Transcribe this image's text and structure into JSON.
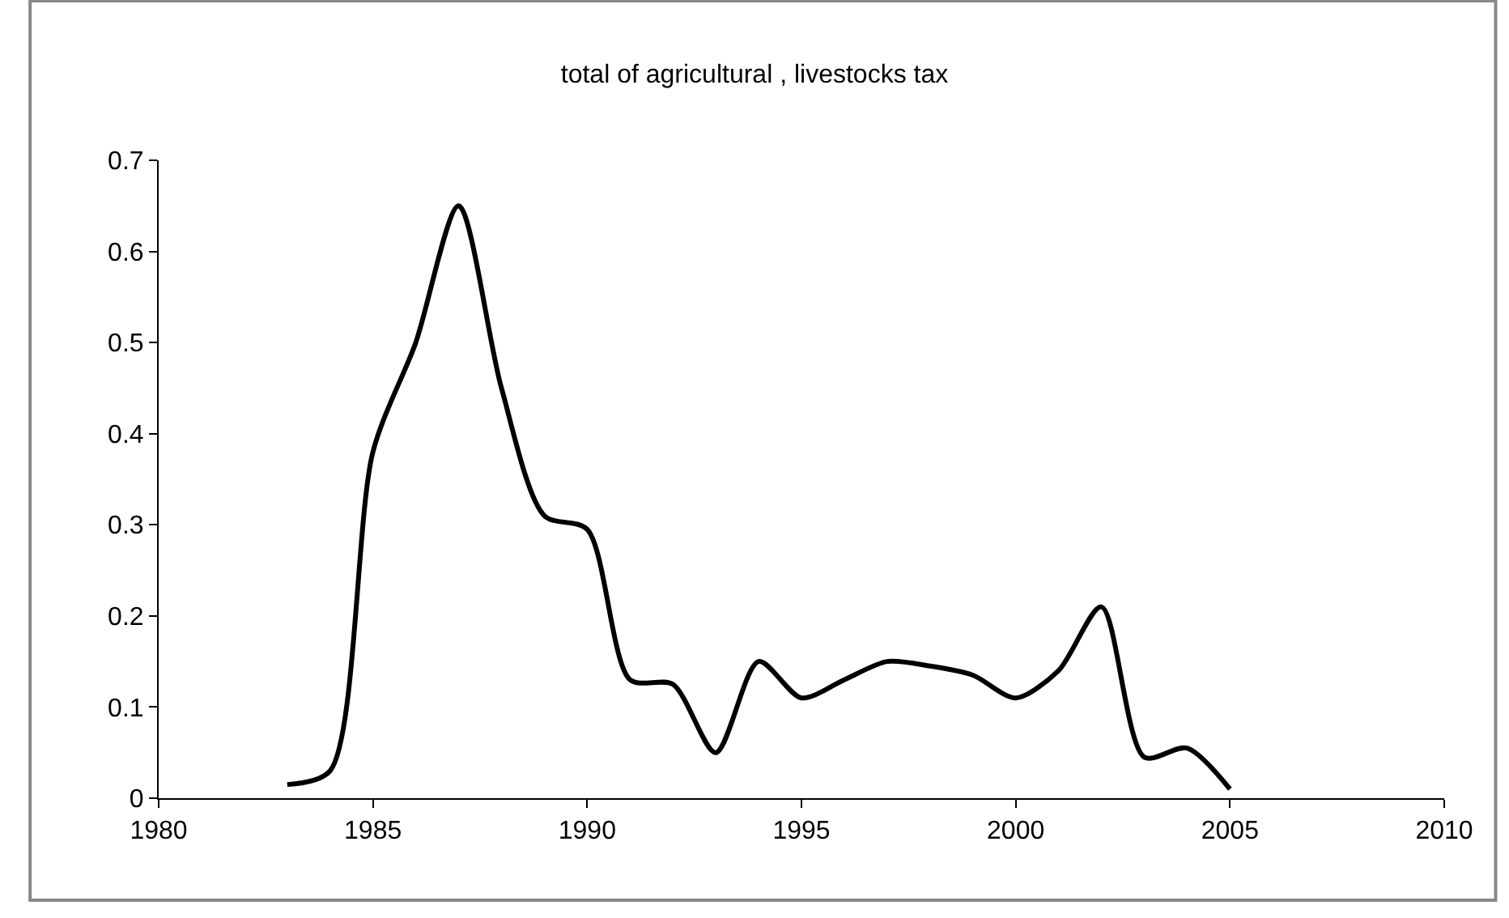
{
  "chart_data": {
    "type": "line",
    "title": "total of agricultural , livestocks tax",
    "x": [
      1983,
      1984,
      1985,
      1986,
      1987,
      1988,
      1989,
      1990,
      1991,
      1992,
      1993,
      1994,
      1995,
      1996,
      1997,
      1998,
      1999,
      2000,
      2001,
      2002,
      2003,
      2004,
      2005
    ],
    "series": [
      {
        "color": "#000000",
        "values": [
          0.015,
          0.03,
          0.38,
          0.5,
          0.65,
          0.45,
          0.31,
          0.295,
          0.13,
          0.125,
          0.05,
          0.15,
          0.11,
          0.13,
          0.15,
          0.145,
          0.135,
          0.11,
          0.14,
          0.21,
          0.045,
          0.055,
          0.01
        ]
      }
    ],
    "xlim": [
      1980,
      2010
    ],
    "xticks": [
      1980,
      1985,
      1990,
      1995,
      2000,
      2005,
      2010
    ],
    "ylim": [
      0,
      0.7
    ],
    "yticks": [
      0,
      0.1,
      0.2,
      0.3,
      0.4,
      0.5,
      0.6,
      0.7
    ],
    "grid": false,
    "marker": "none",
    "line_style": "solid"
  }
}
